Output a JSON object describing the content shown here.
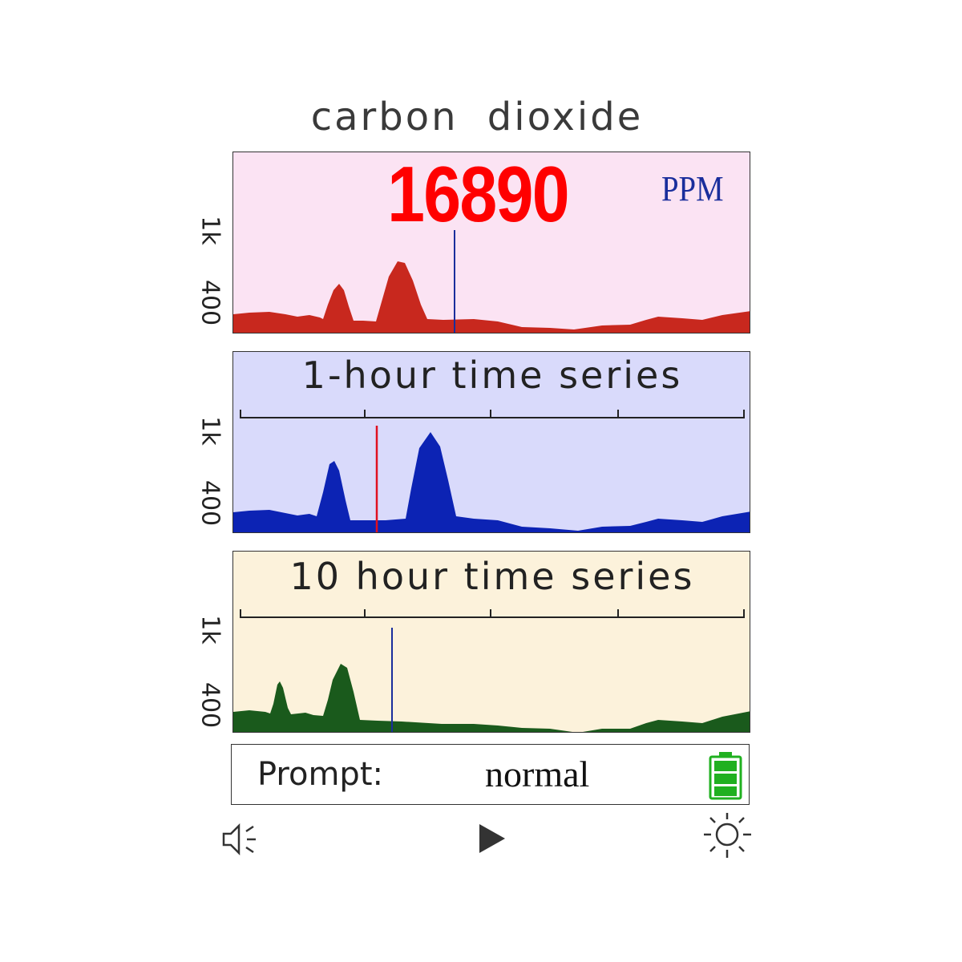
{
  "title": "carbon   dioxide",
  "current": {
    "value": "16890",
    "unit": "PPM"
  },
  "y_axis_labels": {
    "high": "1k",
    "low": "400"
  },
  "panels": [
    {
      "id": "live",
      "title": "",
      "background": "#fbe3f3",
      "fill": "#c8281e",
      "cursor_color": "#1a2e9c"
    },
    {
      "id": "1h",
      "title": "1-hour time series",
      "background": "#d9dafb",
      "fill": "#0c23b4",
      "cursor_color": "#e01020"
    },
    {
      "id": "10h",
      "title": "10 hour time series",
      "background": "#fcf2db",
      "fill": "#1a5a1c",
      "cursor_color": "#1a2e9c"
    }
  ],
  "status": {
    "prompt_label": "Prompt:",
    "prompt_value": "normal",
    "battery_color": "#20b020"
  },
  "controls": {
    "mute_icon": "speaker-mute-icon",
    "play_icon": "play-icon",
    "brightness_icon": "sun-icon"
  }
}
